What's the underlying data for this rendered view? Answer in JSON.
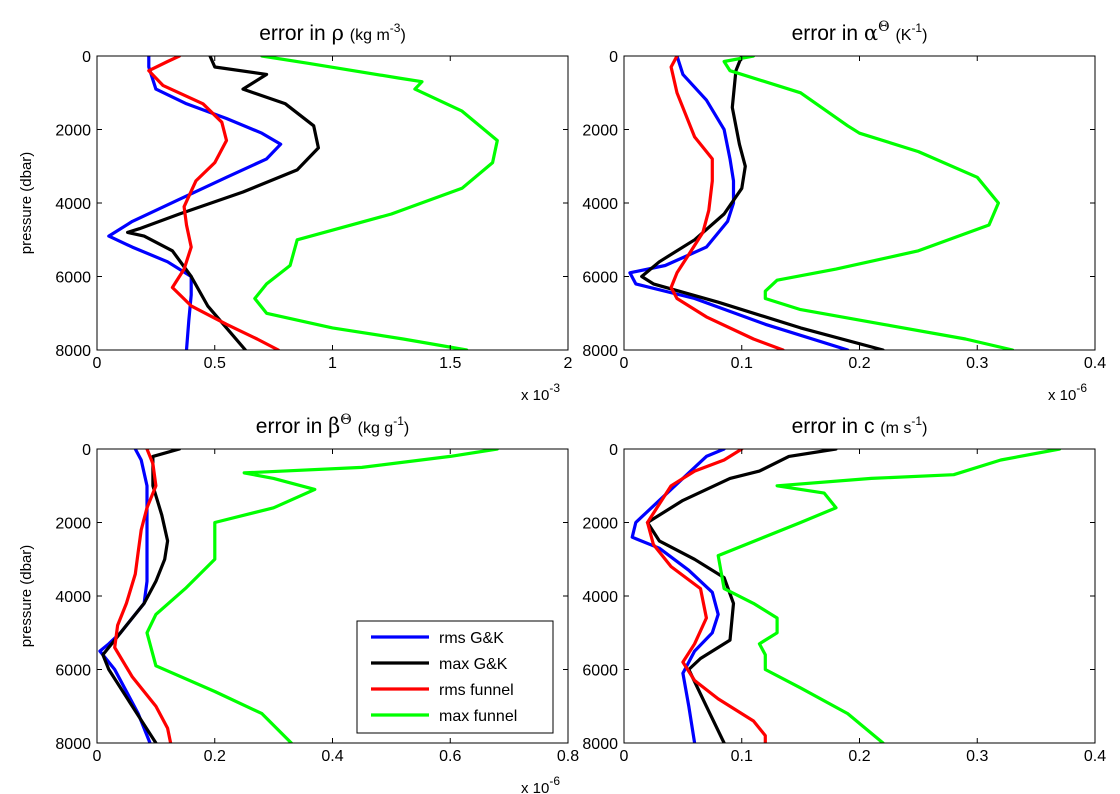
{
  "chart_data": [
    {
      "type": "line",
      "title_main": "error in ",
      "title_symbol": "ρ",
      "title_sup": "",
      "title_unit": "(kg m",
      "title_unit_sup": "-3",
      "title_unit_tail": ")",
      "ylabel": "pressure (dbar)",
      "xlim": [
        0,
        2
      ],
      "ylim": [
        0,
        8000
      ],
      "y_reversed": true,
      "xticks": [
        "0",
        "0.5",
        "1",
        "1.5",
        "2"
      ],
      "yticks": [
        "0",
        "2000",
        "4000",
        "6000",
        "8000"
      ],
      "multiplier_base": "x 10",
      "multiplier_exp": "-3",
      "series": [
        {
          "name": "rms G&K",
          "color": "#0000ff",
          "x": [
            0.22,
            0.22,
            0.25,
            0.38,
            0.55,
            0.7,
            0.78,
            0.72,
            0.55,
            0.35,
            0.15,
            0.05,
            0.15,
            0.3,
            0.4,
            0.4,
            0.39,
            0.38
          ],
          "y": [
            0,
            300,
            900,
            1300,
            1700,
            2100,
            2400,
            2800,
            3300,
            3900,
            4500,
            4900,
            5200,
            5600,
            6000,
            6500,
            7200,
            8000
          ]
        },
        {
          "name": "max G&K",
          "color": "#000000",
          "x": [
            0.48,
            0.5,
            0.72,
            0.62,
            0.8,
            0.92,
            0.94,
            0.85,
            0.62,
            0.35,
            0.18,
            0.13,
            0.2,
            0.32,
            0.4,
            0.47,
            0.55,
            0.63
          ],
          "y": [
            0,
            300,
            500,
            900,
            1300,
            1900,
            2500,
            3100,
            3700,
            4300,
            4700,
            4800,
            4900,
            5300,
            6000,
            6800,
            7400,
            8000
          ]
        },
        {
          "name": "rms funnel",
          "color": "#ff0000",
          "x": [
            0.35,
            0.3,
            0.22,
            0.28,
            0.45,
            0.53,
            0.55,
            0.5,
            0.42,
            0.37,
            0.38,
            0.4,
            0.37,
            0.32,
            0.4,
            0.55,
            0.68,
            0.77
          ],
          "y": [
            0,
            150,
            400,
            800,
            1300,
            1800,
            2300,
            2900,
            3400,
            4100,
            4600,
            5200,
            5800,
            6300,
            6800,
            7300,
            7700,
            8000
          ]
        },
        {
          "name": "max funnel",
          "color": "#00ff00",
          "x": [
            0.7,
            0.9,
            1.28,
            1.38,
            1.35,
            1.55,
            1.7,
            1.68,
            1.55,
            1.25,
            0.85,
            0.82,
            0.72,
            0.67,
            0.72,
            1.0,
            1.3,
            1.57
          ],
          "y": [
            0,
            200,
            600,
            700,
            900,
            1500,
            2300,
            2900,
            3600,
            4300,
            5000,
            5700,
            6200,
            6600,
            7000,
            7400,
            7700,
            8000
          ]
        }
      ]
    },
    {
      "type": "line",
      "title_main": "error in ",
      "title_symbol": "α",
      "title_sup": "Θ",
      "title_unit": "(K",
      "title_unit_sup": "-1",
      "title_unit_tail": ")",
      "ylabel": "",
      "xlim": [
        0,
        0.4
      ],
      "ylim": [
        0,
        8000
      ],
      "y_reversed": true,
      "xticks": [
        "0",
        "0.1",
        "0.2",
        "0.3",
        "0.4"
      ],
      "yticks": [
        "0",
        "2000",
        "4000",
        "6000",
        "8000"
      ],
      "multiplier_base": "x 10",
      "multiplier_exp": "-6",
      "series": [
        {
          "name": "rms G&K",
          "color": "#0000ff",
          "x": [
            0.045,
            0.05,
            0.07,
            0.085,
            0.09,
            0.093,
            0.093,
            0.088,
            0.07,
            0.035,
            0.005,
            0.01,
            0.06,
            0.12,
            0.19
          ],
          "y": [
            0,
            500,
            1200,
            2000,
            2800,
            3400,
            4000,
            4500,
            5200,
            5700,
            5900,
            6200,
            6600,
            7300,
            8000
          ]
        },
        {
          "name": "max G&K",
          "color": "#000000",
          "x": [
            0.1,
            0.095,
            0.092,
            0.098,
            0.103,
            0.1,
            0.085,
            0.06,
            0.03,
            0.015,
            0.025,
            0.08,
            0.15,
            0.22
          ],
          "y": [
            0,
            400,
            1400,
            2400,
            3000,
            3600,
            4300,
            5000,
            5600,
            6000,
            6200,
            6700,
            7400,
            8000
          ]
        },
        {
          "name": "rms funnel",
          "color": "#ff0000",
          "x": [
            0.045,
            0.04,
            0.045,
            0.06,
            0.075,
            0.075,
            0.072,
            0.067,
            0.055,
            0.045,
            0.04,
            0.045,
            0.07,
            0.11,
            0.135
          ],
          "y": [
            0,
            300,
            1000,
            2200,
            2800,
            3400,
            4200,
            4800,
            5400,
            5900,
            6300,
            6600,
            7100,
            7700,
            8000
          ]
        },
        {
          "name": "max funnel",
          "color": "#00ff00",
          "x": [
            0.11,
            0.085,
            0.09,
            0.15,
            0.19,
            0.2,
            0.25,
            0.3,
            0.318,
            0.31,
            0.25,
            0.18,
            0.13,
            0.12,
            0.12,
            0.15,
            0.22,
            0.29,
            0.33
          ],
          "y": [
            0,
            150,
            400,
            1000,
            1900,
            2100,
            2600,
            3300,
            4000,
            4600,
            5300,
            5800,
            6100,
            6400,
            6600,
            6900,
            7300,
            7700,
            8000
          ]
        }
      ]
    },
    {
      "type": "line",
      "title_main": "error in ",
      "title_symbol": "β",
      "title_sup": "Θ",
      "title_unit": "(kg g",
      "title_unit_sup": "-1",
      "title_unit_tail": ")",
      "ylabel": "pressure (dbar)",
      "xlim": [
        0,
        0.8
      ],
      "ylim": [
        0,
        8000
      ],
      "y_reversed": true,
      "xticks": [
        "0",
        "0.2",
        "0.4",
        "0.6",
        "0.8"
      ],
      "yticks": [
        "0",
        "2000",
        "4000",
        "6000",
        "8000"
      ],
      "multiplier_base": "x 10",
      "multiplier_exp": "-6",
      "series": [
        {
          "name": "rms G&K",
          "color": "#0000ff",
          "x": [
            0.065,
            0.075,
            0.085,
            0.085,
            0.085,
            0.085,
            0.08,
            0.06,
            0.04,
            0.02,
            0.005,
            0.03,
            0.07,
            0.09
          ],
          "y": [
            0,
            300,
            1000,
            2000,
            2800,
            3600,
            4200,
            4600,
            5000,
            5300,
            5500,
            6000,
            7200,
            8000
          ]
        },
        {
          "name": "max G&K",
          "color": "#000000",
          "x": [
            0.14,
            0.095,
            0.095,
            0.11,
            0.12,
            0.115,
            0.1,
            0.08,
            0.05,
            0.03,
            0.01,
            0.02,
            0.06,
            0.1
          ],
          "y": [
            0,
            200,
            1000,
            1800,
            2500,
            3000,
            3600,
            4200,
            4800,
            5200,
            5600,
            6000,
            7000,
            8000
          ]
        },
        {
          "name": "rms funnel",
          "color": "#ff0000",
          "x": [
            0.085,
            0.095,
            0.1,
            0.085,
            0.075,
            0.07,
            0.065,
            0.05,
            0.035,
            0.03,
            0.06,
            0.1,
            0.12,
            0.125
          ],
          "y": [
            0,
            400,
            1000,
            1600,
            2200,
            2800,
            3400,
            4200,
            4800,
            5400,
            6200,
            7000,
            7600,
            8000
          ]
        },
        {
          "name": "max funnel",
          "color": "#00ff00",
          "x": [
            0.68,
            0.6,
            0.45,
            0.25,
            0.3,
            0.37,
            0.3,
            0.2,
            0.2,
            0.15,
            0.1,
            0.085,
            0.1,
            0.2,
            0.28,
            0.33
          ],
          "y": [
            0,
            200,
            500,
            650,
            800,
            1100,
            1600,
            2000,
            3000,
            3800,
            4500,
            5000,
            5900,
            6600,
            7200,
            8000
          ]
        }
      ]
    },
    {
      "type": "line",
      "title_main": "error in c",
      "title_symbol": "",
      "title_sup": "",
      "title_unit": "(m s",
      "title_unit_sup": "-1",
      "title_unit_tail": ")",
      "ylabel": "",
      "xlim": [
        0,
        0.4
      ],
      "ylim": [
        0,
        8000
      ],
      "y_reversed": true,
      "xticks": [
        "0",
        "0.1",
        "0.2",
        "0.3",
        "0.4"
      ],
      "yticks": [
        "0",
        "2000",
        "4000",
        "6000",
        "8000"
      ],
      "multiplier_base": "",
      "multiplier_exp": "",
      "series": [
        {
          "name": "rms G&K",
          "color": "#0000ff",
          "x": [
            0.085,
            0.07,
            0.06,
            0.03,
            0.01,
            0.007,
            0.03,
            0.055,
            0.075,
            0.08,
            0.075,
            0.06,
            0.05,
            0.055,
            0.06
          ],
          "y": [
            0,
            200,
            500,
            1400,
            2000,
            2400,
            2700,
            3300,
            3900,
            4500,
            5000,
            5500,
            6100,
            7000,
            8000
          ]
        },
        {
          "name": "max G&K",
          "color": "#000000",
          "x": [
            0.18,
            0.14,
            0.115,
            0.09,
            0.05,
            0.02,
            0.03,
            0.06,
            0.085,
            0.093,
            0.09,
            0.065,
            0.055,
            0.07,
            0.085
          ],
          "y": [
            0,
            200,
            600,
            800,
            1400,
            2000,
            2500,
            3000,
            3500,
            4200,
            5200,
            5700,
            6000,
            7000,
            8000
          ]
        },
        {
          "name": "rms funnel",
          "color": "#ff0000",
          "x": [
            0.1,
            0.085,
            0.06,
            0.04,
            0.03,
            0.02,
            0.025,
            0.04,
            0.065,
            0.07,
            0.06,
            0.05,
            0.06,
            0.08,
            0.11,
            0.12,
            0.12
          ],
          "y": [
            0,
            300,
            600,
            1000,
            1500,
            2000,
            2600,
            3200,
            3800,
            4600,
            5300,
            5800,
            6300,
            6800,
            7400,
            7800,
            8000
          ]
        },
        {
          "name": "max funnel",
          "color": "#00ff00",
          "x": [
            0.37,
            0.32,
            0.28,
            0.21,
            0.13,
            0.17,
            0.18,
            0.15,
            0.08,
            0.085,
            0.11,
            0.13,
            0.13,
            0.115,
            0.12,
            0.12,
            0.15,
            0.19,
            0.22
          ],
          "y": [
            0,
            300,
            700,
            800,
            1000,
            1200,
            1600,
            2000,
            2900,
            3800,
            4200,
            4600,
            5000,
            5300,
            5600,
            6000,
            6500,
            7200,
            8000
          ]
        }
      ]
    }
  ],
  "legend": {
    "items": [
      {
        "label": "rms G&K",
        "color": "#0000ff"
      },
      {
        "label": "max G&K",
        "color": "#000000"
      },
      {
        "label": "rms funnel",
        "color": "#ff0000"
      },
      {
        "label": "max funnel",
        "color": "#00ff00"
      }
    ]
  }
}
